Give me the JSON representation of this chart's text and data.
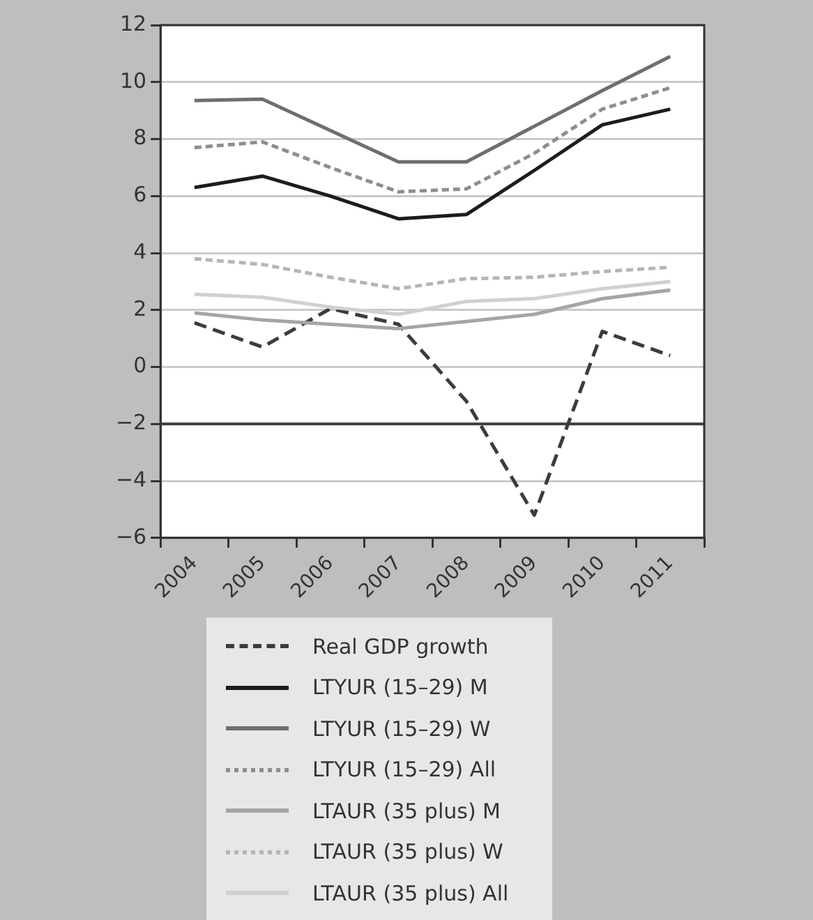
{
  "chart_data": {
    "type": "line",
    "categories": [
      "2004",
      "2005",
      "2006",
      "2007",
      "2008",
      "2009",
      "2010",
      "2011"
    ],
    "series": [
      {
        "name": "Real GDP growth",
        "color": "#3c3c3e",
        "line_style": "dashed",
        "values": [
          1.55,
          0.7,
          2.05,
          1.5,
          -1.2,
          -5.2,
          1.25,
          0.4
        ]
      },
      {
        "name": "LTYUR (15–29) M",
        "color": "#1c1c1e",
        "line_style": "solid",
        "values": [
          6.3,
          6.7,
          6.0,
          5.2,
          5.35,
          6.9,
          8.5,
          9.05
        ]
      },
      {
        "name": "LTYUR (15–29) W",
        "color": "#6d6e70",
        "line_style": "solid",
        "values": [
          9.35,
          9.4,
          8.3,
          7.2,
          7.2,
          8.45,
          9.7,
          10.9
        ]
      },
      {
        "name": "LTYUR (15–29) All",
        "color": "#8d8e90",
        "line_style": "dotted",
        "values": [
          7.7,
          7.9,
          7.0,
          6.15,
          6.25,
          7.5,
          9.05,
          9.8
        ]
      },
      {
        "name": "LTAUR (35 plus) M",
        "color": "#a4a5a7",
        "line_style": "solid",
        "values": [
          1.9,
          1.65,
          1.5,
          1.35,
          1.6,
          1.85,
          2.4,
          2.7
        ]
      },
      {
        "name": "LTAUR (35 plus) W",
        "color": "#b4b5b7",
        "line_style": "dotted",
        "values": [
          3.8,
          3.6,
          3.15,
          2.75,
          3.1,
          3.15,
          3.35,
          3.5
        ]
      },
      {
        "name": "LTAUR (35 plus) All",
        "color": "#cfd0d2",
        "line_style": "solid",
        "values": [
          2.55,
          2.45,
          2.1,
          1.85,
          2.3,
          2.4,
          2.75,
          3.0
        ]
      }
    ],
    "ylim": [
      -6,
      12
    ],
    "yticks": [
      -6,
      -4,
      -2,
      0,
      2,
      4,
      6,
      8,
      10,
      12
    ],
    "grid": "y",
    "legend": "bottom",
    "marker": "none",
    "ref_lines": [
      {
        "axis": "y",
        "value": -2,
        "color": "#3c3c3e"
      }
    ]
  }
}
